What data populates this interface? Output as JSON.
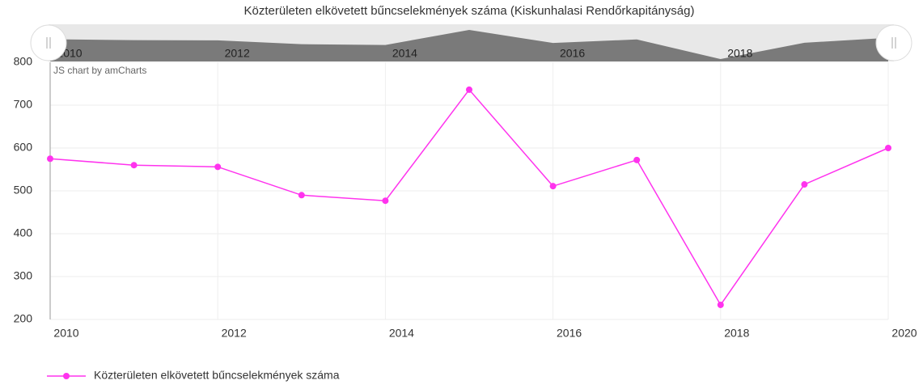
{
  "chart_data": {
    "type": "line",
    "title": "Közterületen elkövetett bűncselekmények száma (Kiskunhalasi Rendőrkapitányság)",
    "credit": "JS chart by amCharts",
    "x": [
      2010,
      2011,
      2012,
      2013,
      2014,
      2015,
      2016,
      2017,
      2018,
      2019,
      2020
    ],
    "series": [
      {
        "name": "Közterületen elkövetett bűncselekmények száma",
        "color": "#ff33ee",
        "values": [
          575,
          560,
          556,
          490,
          477,
          736,
          511,
          572,
          234,
          515,
          600
        ]
      }
    ],
    "xlim": [
      2010,
      2020
    ],
    "xticks": [
      2010,
      2012,
      2014,
      2016,
      2018,
      2020
    ],
    "ylim": [
      200,
      800
    ],
    "yticks": [
      200,
      300,
      400,
      500,
      600,
      700,
      800
    ],
    "grid": true
  }
}
